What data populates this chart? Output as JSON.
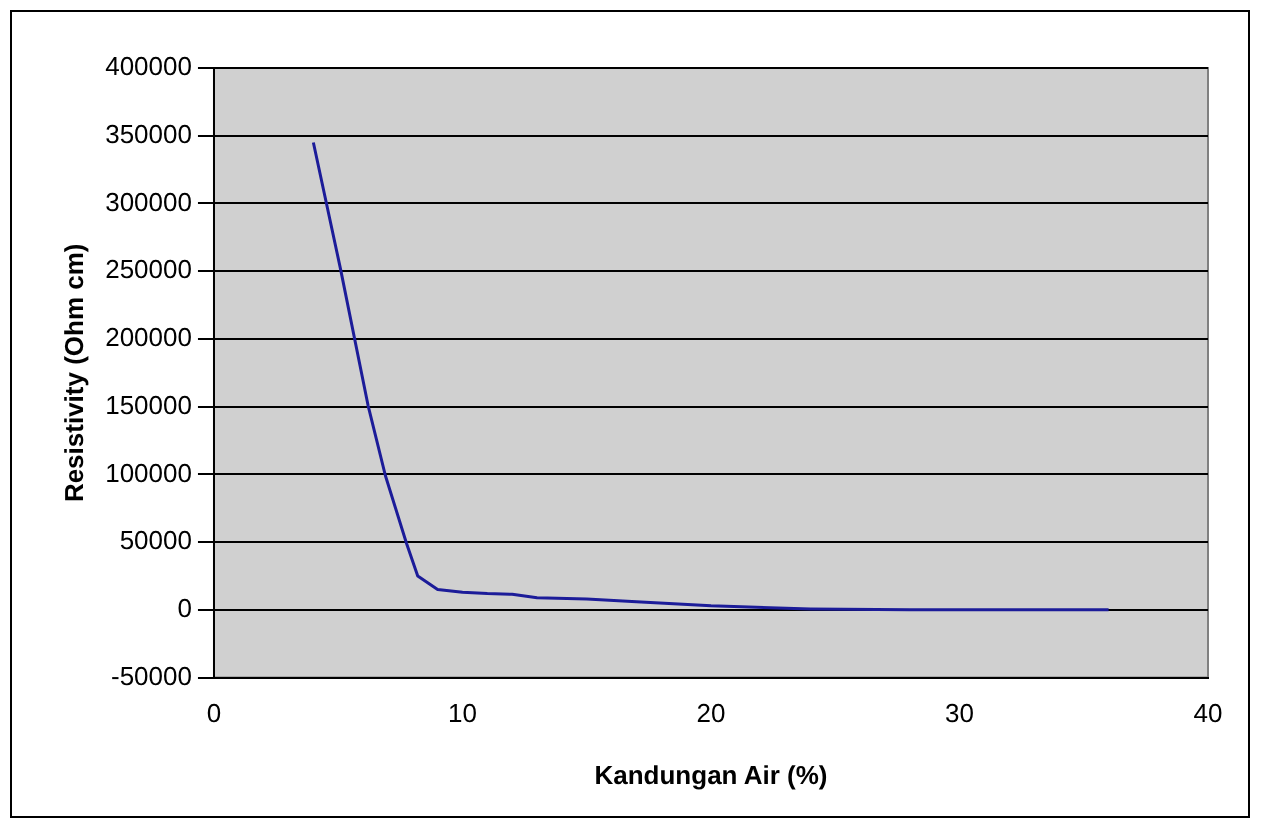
{
  "chart_data": {
    "type": "line",
    "xlabel": "Kandungan Air (%)",
    "ylabel": "Resistivity (Ohm cm)",
    "x": [
      4,
      5.1,
      6.2,
      6.9,
      7.75,
      8.2,
      9,
      10,
      11,
      12,
      13,
      15,
      17,
      20,
      24,
      28,
      36
    ],
    "series": [
      {
        "color": "#1c1c99",
        "values": [
          345000,
          251000,
          151000,
          99000,
          49000,
          25000,
          15000,
          13000,
          12000,
          11500,
          9000,
          8000,
          6000,
          3000,
          700,
          0,
          0
        ]
      }
    ],
    "xlim": [
      0,
      40
    ],
    "xticks": [
      0,
      10,
      20,
      30,
      40
    ],
    "ylim": [
      -50000,
      400000
    ],
    "yticks": [
      -50000,
      0,
      50000,
      100000,
      150000,
      200000,
      250000,
      300000,
      350000,
      400000
    ],
    "grid": "y",
    "legend": false,
    "marker": "none",
    "line_style": "solid"
  }
}
